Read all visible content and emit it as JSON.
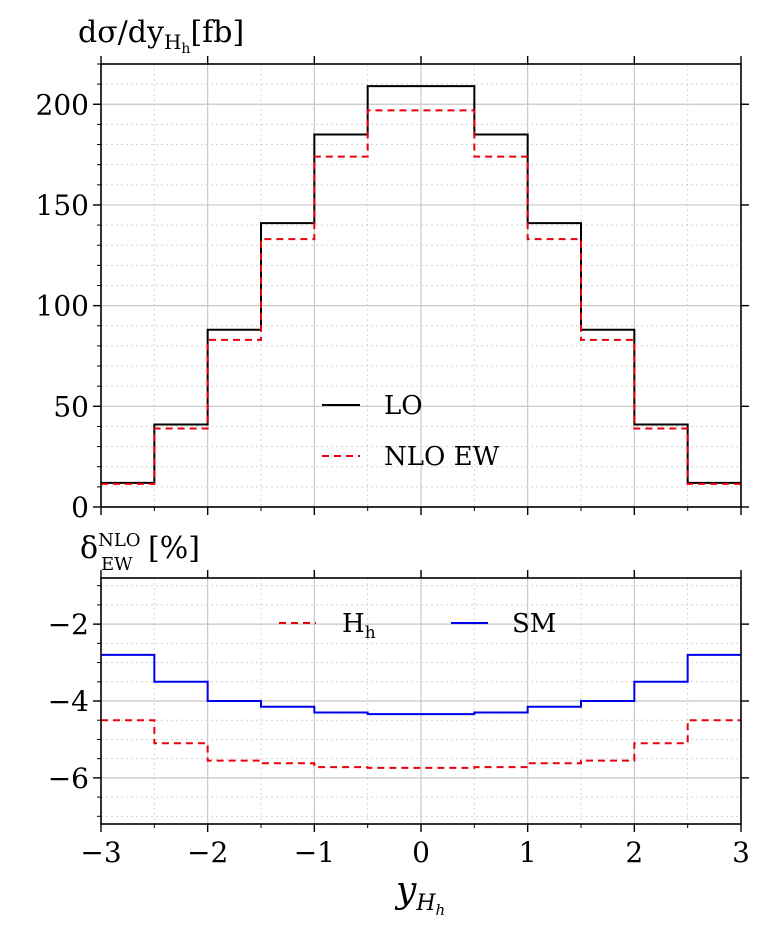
{
  "chart_data": [
    {
      "type": "line",
      "panel": "top",
      "title": "",
      "ylabel": "dσ/dy_{H_h}[fb]",
      "ylabel_parts": {
        "main": "dσ/dy",
        "sub": "H",
        "subsub": "h",
        "suffix": "[fb]"
      },
      "xlabel": "",
      "xlim": [
        -3,
        3
      ],
      "ylim": [
        0,
        220
      ],
      "bin_edges": [
        -3,
        -2.5,
        -2,
        -1.5,
        -1,
        -0.5,
        0.5,
        1,
        1.5,
        2,
        2.5,
        3
      ],
      "yticks": [
        0,
        50,
        100,
        150,
        200
      ],
      "ytick_labels": [
        "0",
        "50",
        "100",
        "150",
        "200"
      ],
      "series": [
        {
          "name": "LO",
          "color": "#000000",
          "style": "solid",
          "values": [
            12,
            41,
            88,
            141,
            185,
            209,
            185,
            141,
            88,
            41,
            12
          ]
        },
        {
          "name": "NLO EW",
          "color": "#e8000b",
          "style": "dashed",
          "values": [
            11.5,
            39,
            83,
            133,
            174,
            197,
            174,
            133,
            83,
            39,
            11.5
          ]
        }
      ],
      "legend": {
        "position": "lower-center",
        "entries": [
          "LO",
          "NLO EW"
        ]
      },
      "grid": true
    },
    {
      "type": "line",
      "panel": "bottom",
      "ylabel": "δ_EW^NLO[%]",
      "ylabel_parts": {
        "main": "δ",
        "sup": "NLO",
        "sub": "EW",
        "suffix": "[%]"
      },
      "xlabel": "y_{H_h}",
      "xlabel_parts": {
        "main": "y",
        "sub": "H",
        "subsub": "h"
      },
      "xlim": [
        -3,
        3
      ],
      "ylim": [
        -7.2,
        -0.8
      ],
      "bin_edges": [
        -3,
        -2.5,
        -2,
        -1.5,
        -1,
        -0.5,
        0.5,
        1,
        1.5,
        2,
        2.5,
        3
      ],
      "xticks": [
        -3,
        -2,
        -1,
        0,
        1,
        2,
        3
      ],
      "xtick_labels": [
        "−3",
        "−2",
        "−1",
        "0",
        "1",
        "2",
        "3"
      ],
      "yticks": [
        -6,
        -4,
        -2
      ],
      "ytick_labels": [
        "−6",
        "−4",
        "−2"
      ],
      "series": [
        {
          "name": "H_h",
          "label_main": "H",
          "label_sub": "h",
          "color": "#e8000b",
          "style": "dashed",
          "values": [
            -4.5,
            -5.1,
            -5.55,
            -5.62,
            -5.72,
            -5.74,
            -5.72,
            -5.62,
            -5.55,
            -5.1,
            -4.5
          ]
        },
        {
          "name": "SM",
          "label_main": "SM",
          "color": "#0000ee",
          "style": "solid",
          "values": [
            -2.8,
            -3.5,
            -4.0,
            -4.15,
            -4.3,
            -4.34,
            -4.3,
            -4.15,
            -4.0,
            -3.5,
            -2.8
          ]
        }
      ],
      "legend": {
        "position": "top-center",
        "entries": [
          "H_h",
          "SM"
        ]
      },
      "grid": true
    }
  ]
}
